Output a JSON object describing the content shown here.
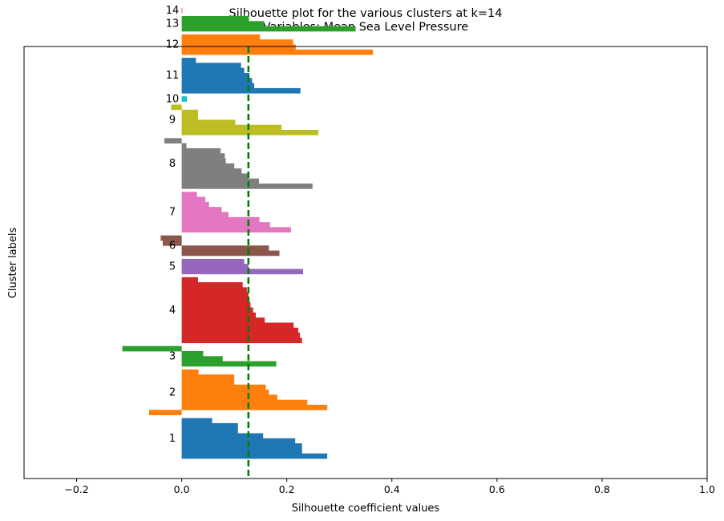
{
  "chart_data": {
    "type": "bar",
    "orientation": "horizontal",
    "title": "Silhouette plot for the various clusters at k=14",
    "subtitle": "Variables: Mean Sea Level Pressure",
    "xlabel": "Silhouette coefficient values",
    "ylabel": "Cluster labels",
    "xlim": [
      -0.3,
      1.0
    ],
    "xticks": [
      "−0.2",
      "0.0",
      "0.2",
      "0.4",
      "0.6",
      "0.8",
      "1.0"
    ],
    "xtick_values": [
      -0.2,
      0.0,
      0.2,
      0.4,
      0.6,
      0.8,
      1.0
    ],
    "average_line": {
      "value": 0.127,
      "color": "#008000",
      "style": "dashed"
    },
    "grid": false,
    "clusters": [
      {
        "label": "1",
        "color": "#1f77b4",
        "values": [
          0.277,
          0.229,
          0.229,
          0.216,
          0.155,
          0.107,
          0.107,
          0.058
        ]
      },
      {
        "label": "2",
        "color": "#ff7f0e",
        "values": [
          -0.062,
          0.277,
          0.239,
          0.182,
          0.166,
          0.16,
          0.1,
          0.1,
          0.032
        ]
      },
      {
        "label": "3",
        "color": "#2ca02c",
        "values": [
          0.18,
          0.078,
          0.041,
          -0.113
        ]
      },
      {
        "label": "4",
        "color": "#d62728",
        "values": [
          0.229,
          0.225,
          0.222,
          0.213,
          0.158,
          0.141,
          0.136,
          0.131,
          0.128,
          0.127,
          0.124,
          0.116,
          0.031
        ]
      },
      {
        "label": "5",
        "color": "#9467bd",
        "values": [
          0.231,
          0.127,
          0.119
        ]
      },
      {
        "label": "6",
        "color": "#8c564b",
        "values": [
          0.186,
          0.166,
          -0.036,
          -0.04
        ]
      },
      {
        "label": "7",
        "color": "#e377c2",
        "values": [
          0.208,
          0.168,
          0.148,
          0.089,
          0.076,
          0.052,
          0.045,
          0.029
        ]
      },
      {
        "label": "8",
        "color": "#7f7f7f",
        "values": [
          0.249,
          0.147,
          0.127,
          0.114,
          0.1,
          0.084,
          0.082,
          0.074,
          0.009,
          -0.033
        ]
      },
      {
        "label": "9",
        "color": "#bcbd22",
        "values": [
          0.26,
          0.19,
          0.102,
          0.031,
          0.031,
          -0.02
        ]
      },
      {
        "label": "10",
        "color": "#17becf",
        "values": [
          0.01
        ]
      },
      {
        "label": "11",
        "color": "#1f77b4",
        "values": [
          0.226,
          0.138,
          0.134,
          0.129,
          0.119,
          0.113,
          0.027
        ]
      },
      {
        "label": "12",
        "color": "#ff7f0e",
        "values": [
          0.364,
          0.217,
          0.212,
          0.149
        ]
      },
      {
        "label": "13",
        "color": "#2ca02c",
        "values": [
          0.331,
          0.157,
          0.128
        ]
      },
      {
        "label": "14",
        "color": "#d62728",
        "values": [
          0.001
        ]
      }
    ]
  }
}
